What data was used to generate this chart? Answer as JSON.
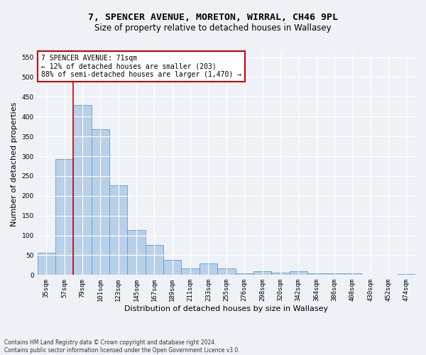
{
  "title": "7, SPENCER AVENUE, MORETON, WIRRAL, CH46 9PL",
  "subtitle": "Size of property relative to detached houses in Wallasey",
  "xlabel": "Distribution of detached houses by size in Wallasey",
  "ylabel": "Number of detached properties",
  "categories": [
    "35sqm",
    "57sqm",
    "79sqm",
    "101sqm",
    "123sqm",
    "145sqm",
    "167sqm",
    "189sqm",
    "211sqm",
    "233sqm",
    "255sqm",
    "276sqm",
    "298sqm",
    "320sqm",
    "342sqm",
    "364sqm",
    "386sqm",
    "408sqm",
    "430sqm",
    "452sqm",
    "474sqm"
  ],
  "values": [
    57,
    293,
    430,
    368,
    226,
    113,
    76,
    38,
    17,
    30,
    17,
    5,
    9,
    6,
    9,
    4,
    5,
    4,
    0,
    0,
    3
  ],
  "bar_color": "#b8d0e8",
  "bar_edge_color": "#6699cc",
  "property_line_color": "#cc0000",
  "annotation_text": "7 SPENCER AVENUE: 71sqm\n← 12% of detached houses are smaller (203)\n88% of semi-detached houses are larger (1,470) →",
  "annotation_box_color": "#ffffff",
  "annotation_box_edge_color": "#cc0000",
  "ylim": [
    0,
    560
  ],
  "yticks": [
    0,
    50,
    100,
    150,
    200,
    250,
    300,
    350,
    400,
    450,
    500,
    550
  ],
  "footer_line1": "Contains HM Land Registry data © Crown copyright and database right 2024.",
  "footer_line2": "Contains public sector information licensed under the Open Government Licence v3.0.",
  "background_color": "#eef2f7",
  "plot_background_color": "#eef2f7",
  "title_fontsize": 9.5,
  "subtitle_fontsize": 8.5,
  "tick_fontsize": 6.5,
  "ylabel_fontsize": 8,
  "xlabel_fontsize": 8,
  "annotation_fontsize": 7,
  "footer_fontsize": 5.5
}
